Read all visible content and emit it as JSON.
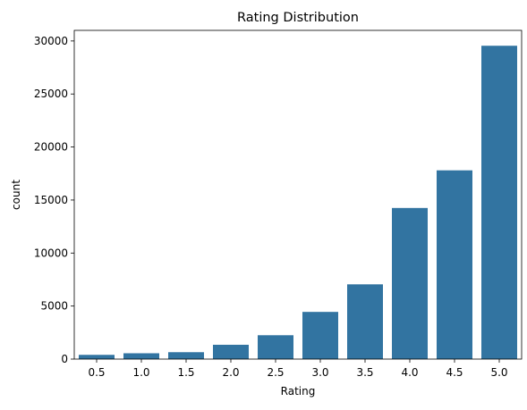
{
  "chart_data": {
    "type": "bar",
    "title": "Rating Distribution",
    "xlabel": "Rating",
    "ylabel": "count",
    "categories": [
      "0.5",
      "1.0",
      "1.5",
      "2.0",
      "2.5",
      "3.0",
      "3.5",
      "4.0",
      "4.5",
      "5.0"
    ],
    "values": [
      400,
      550,
      650,
      1350,
      2250,
      4450,
      7050,
      14250,
      17800,
      29550
    ],
    "ylim": [
      0,
      31000
    ],
    "yticks": [
      0,
      5000,
      10000,
      15000,
      20000,
      25000,
      30000
    ],
    "grid": false,
    "legend": "none",
    "bar_color": "#3274a1"
  }
}
